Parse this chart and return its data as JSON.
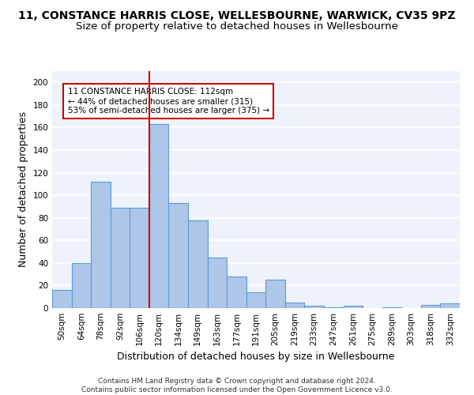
{
  "title": "11, CONSTANCE HARRIS CLOSE, WELLESBOURNE, WARWICK, CV35 9PZ",
  "subtitle": "Size of property relative to detached houses in Wellesbourne",
  "xlabel": "Distribution of detached houses by size in Wellesbourne",
  "ylabel": "Number of detached properties",
  "categories": [
    "50sqm",
    "64sqm",
    "78sqm",
    "92sqm",
    "106sqm",
    "120sqm",
    "134sqm",
    "149sqm",
    "163sqm",
    "177sqm",
    "191sqm",
    "205sqm",
    "219sqm",
    "233sqm",
    "247sqm",
    "261sqm",
    "275sqm",
    "289sqm",
    "303sqm",
    "318sqm",
    "332sqm"
  ],
  "values": [
    16,
    40,
    112,
    89,
    89,
    163,
    93,
    78,
    45,
    28,
    14,
    25,
    5,
    2,
    1,
    2,
    0,
    1,
    0,
    3,
    4
  ],
  "bar_color": "#aec6e8",
  "bar_edge_color": "#5b9bd5",
  "bar_linewidth": 0.8,
  "vline_color": "#cc0000",
  "annotation_text": "11 CONSTANCE HARRIS CLOSE: 112sqm\n← 44% of detached houses are smaller (315)\n53% of semi-detached houses are larger (375) →",
  "annotation_box_color": "white",
  "annotation_box_edge": "#cc0000",
  "ylim": [
    0,
    210
  ],
  "yticks": [
    0,
    20,
    40,
    60,
    80,
    100,
    120,
    140,
    160,
    180,
    200
  ],
  "bg_color": "#eef3fb",
  "grid_color": "white",
  "footer": "Contains HM Land Registry data © Crown copyright and database right 2024.\nContains public sector information licensed under the Open Government Licence v3.0.",
  "title_fontsize": 10,
  "subtitle_fontsize": 9.5,
  "xlabel_fontsize": 9,
  "ylabel_fontsize": 9,
  "tick_fontsize": 7.5,
  "annotation_fontsize": 7.5,
  "footer_fontsize": 6.5
}
